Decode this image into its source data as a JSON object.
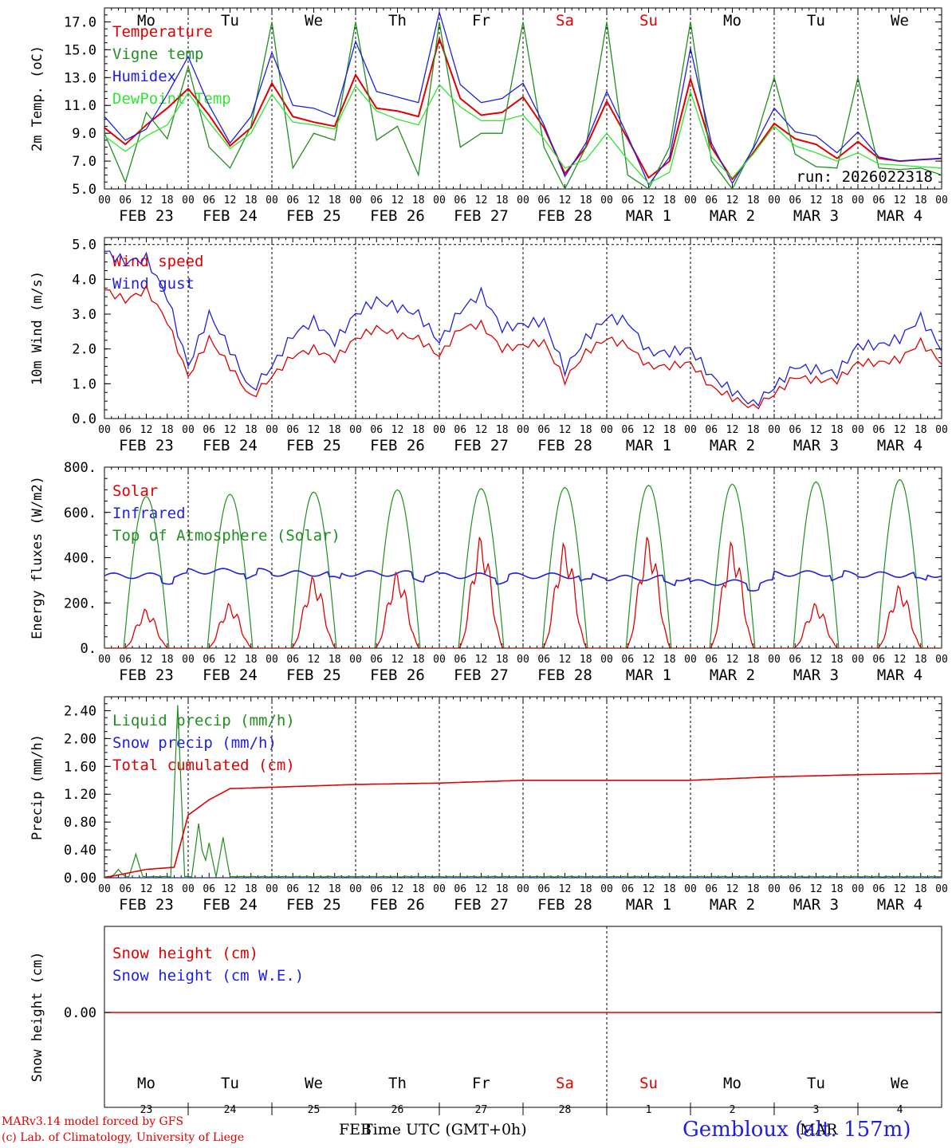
{
  "chart_data": [
    {
      "type": "line",
      "ylabel": "2m Temp. (oC)",
      "ylim": [
        5.0,
        18.0
      ],
      "yticks": [
        "5.0",
        "7.0",
        "9.0",
        "11.0",
        "13.0",
        "15.0",
        "17.0"
      ],
      "run_label": "run: 2026022318",
      "x_hours": [
        0,
        6,
        12,
        18,
        24,
        30,
        36,
        42,
        48,
        54,
        60,
        66,
        72,
        78,
        84,
        90,
        96,
        102,
        108,
        114,
        120,
        126,
        132,
        138,
        144,
        150,
        156,
        162,
        168,
        174,
        180,
        186,
        192,
        198,
        204,
        210,
        216,
        222,
        228,
        234,
        240
      ],
      "series": [
        {
          "name": "Temperature",
          "color": "#e00000",
          "values": [
            9.4,
            8.2,
            9.6,
            10.8,
            12.2,
            10.3,
            8.1,
            9.4,
            12.6,
            10.2,
            9.8,
            9.5,
            13.2,
            10.8,
            10.6,
            10.2,
            15.8,
            11.5,
            10.3,
            10.5,
            11.6,
            9.4,
            6.1,
            8.0,
            11.3,
            8.6,
            5.8,
            7.0,
            12.9,
            8.0,
            5.7,
            7.6,
            9.7,
            8.6,
            8.2,
            7.2,
            8.4,
            7.2,
            7.0,
            7.1,
            7.2
          ]
        },
        {
          "name": "Vigne temp",
          "color": "#1f8f1f",
          "values": [
            9.0,
            5.5,
            10.5,
            8.6,
            13.8,
            8.0,
            6.5,
            9.5,
            17.0,
            6.5,
            9.0,
            8.5,
            17.0,
            8.5,
            9.5,
            6.0,
            17.0,
            8.0,
            9.0,
            9.0,
            17.0,
            8.0,
            5.0,
            8.0,
            17.0,
            6.0,
            5.0,
            8.0,
            17.0,
            7.0,
            5.0,
            8.0,
            13.0,
            7.5,
            6.6,
            6.5,
            13.0,
            6.5,
            6.4,
            6.5,
            6.0
          ]
        },
        {
          "name": "Humidex",
          "color": "#1f1fe0",
          "values": [
            10.2,
            8.5,
            9.3,
            11.8,
            14.5,
            11.0,
            8.3,
            10.2,
            14.8,
            11.0,
            10.8,
            10.2,
            15.6,
            12.0,
            11.6,
            11.2,
            17.7,
            12.5,
            11.2,
            11.5,
            12.6,
            9.6,
            5.9,
            8.3,
            12.0,
            8.8,
            5.3,
            7.3,
            15.1,
            8.3,
            5.4,
            7.9,
            10.8,
            9.1,
            8.8,
            7.6,
            9.1,
            7.3,
            7.0,
            7.1,
            7.2
          ]
        },
        {
          "name": "DewPoint Temp",
          "color": "#33e633",
          "values": [
            8.8,
            7.7,
            8.8,
            9.6,
            11.9,
            9.8,
            7.9,
            9.0,
            11.8,
            9.8,
            9.6,
            9.3,
            12.4,
            10.6,
            10.0,
            9.6,
            12.5,
            10.9,
            9.9,
            9.9,
            10.3,
            8.6,
            6.5,
            7.1,
            9.0,
            7.1,
            5.4,
            6.2,
            12.0,
            7.3,
            5.8,
            7.5,
            9.5,
            8.1,
            7.6,
            7.0,
            7.6,
            6.8,
            6.7,
            6.6,
            6.5
          ]
        }
      ]
    },
    {
      "type": "line",
      "ylabel": "10m Wind (m/s)",
      "ylim": [
        0.0,
        5.2
      ],
      "yticks": [
        "0.0",
        "1.0",
        "2.0",
        "3.0",
        "4.0",
        "5.0"
      ],
      "x_hours": [
        0,
        6,
        12,
        18,
        24,
        30,
        36,
        42,
        48,
        54,
        60,
        66,
        72,
        78,
        84,
        90,
        96,
        102,
        108,
        114,
        120,
        126,
        132,
        138,
        144,
        150,
        156,
        162,
        168,
        174,
        180,
        186,
        192,
        198,
        204,
        210,
        216,
        222,
        228,
        234,
        240
      ],
      "series": [
        {
          "name": "Wind speed",
          "color": "#e00000",
          "values": [
            3.7,
            3.4,
            3.7,
            2.8,
            1.2,
            2.3,
            1.5,
            0.6,
            1.2,
            1.8,
            2.0,
            1.7,
            2.3,
            2.6,
            2.4,
            2.3,
            1.8,
            2.6,
            2.7,
            2.0,
            2.1,
            2.2,
            1.1,
            1.9,
            2.3,
            2.1,
            1.5,
            1.5,
            1.6,
            0.9,
            0.6,
            0.3,
            0.7,
            1.2,
            1.1,
            1.1,
            1.6,
            1.6,
            1.7,
            2.2,
            1.6
          ]
        },
        {
          "name": "Wind gust",
          "color": "#1f1fe0",
          "values": [
            4.8,
            4.5,
            4.6,
            3.5,
            1.5,
            3.0,
            2.0,
            0.8,
            1.5,
            2.4,
            2.8,
            2.2,
            3.0,
            3.4,
            3.2,
            3.0,
            2.2,
            3.1,
            3.6,
            2.6,
            2.7,
            2.8,
            1.4,
            2.3,
            2.9,
            2.8,
            1.9,
            1.9,
            2.0,
            1.2,
            0.8,
            0.4,
            0.9,
            1.5,
            1.4,
            1.3,
            2.1,
            2.1,
            2.3,
            2.9,
            2.0
          ]
        }
      ]
    },
    {
      "type": "line",
      "ylabel": "Energy fluxes (W/m2)",
      "ylim": [
        0,
        800
      ],
      "yticks": [
        "0.",
        "200.",
        "400.",
        "600.",
        "800."
      ],
      "solar_peaks": [
        175,
        200,
        320,
        340,
        500,
        470,
        500,
        475,
        200,
        280
      ],
      "toa_peaks": [
        670,
        680,
        690,
        700,
        705,
        710,
        720,
        725,
        735,
        745
      ],
      "infrared_level": [
        320,
        340,
        330,
        330,
        320,
        320,
        310,
        290,
        330,
        325
      ],
      "series": [
        {
          "name": "Solar",
          "color": "#e00000"
        },
        {
          "name": "Infrared",
          "color": "#1f1fe0"
        },
        {
          "name": "Top of Atmosphere (Solar)",
          "color": "#1f8f1f"
        }
      ]
    },
    {
      "type": "line",
      "ylabel": "Precip (mm/h)",
      "ylim": [
        0.0,
        2.6
      ],
      "yticks": [
        "0.00",
        "0.40",
        "0.80",
        "1.20",
        "1.60",
        "2.00",
        "2.40"
      ],
      "series": [
        {
          "name": "Liquid precip (mm/h)",
          "color": "#1f8f1f",
          "peaks_hours": [
            4,
            9,
            21,
            27,
            30,
            34
          ],
          "peaks_values": [
            0.12,
            0.34,
            2.48,
            0.78,
            0.5,
            0.58
          ]
        },
        {
          "name": "Snow precip (mm/h)",
          "color": "#1f1fe0"
        },
        {
          "name": "Total cumulated (cm)",
          "color": "#e00000",
          "x_hours": [
            0,
            12,
            20,
            24,
            30,
            36,
            48,
            72,
            96,
            120,
            144,
            168,
            192,
            216,
            240
          ],
          "values": [
            0,
            0.12,
            0.15,
            0.9,
            1.12,
            1.28,
            1.3,
            1.34,
            1.36,
            1.4,
            1.4,
            1.4,
            1.45,
            1.48,
            1.5
          ]
        }
      ]
    },
    {
      "type": "line",
      "ylabel": "Snow height (cm)",
      "yticks": [
        "0.00"
      ],
      "series": [
        {
          "name": "Snow height (cm)",
          "color": "#e00000",
          "value": 0.0
        },
        {
          "name": "Snow height (cm W.E.)",
          "color": "#1f1fe0",
          "value": 0.0
        }
      ]
    }
  ],
  "days": [
    {
      "abbr": "Mo",
      "date": "FEB 23",
      "num": "23",
      "weekend": false
    },
    {
      "abbr": "Tu",
      "date": "FEB 24",
      "num": "24",
      "weekend": false
    },
    {
      "abbr": "We",
      "date": "FEB 25",
      "num": "25",
      "weekend": false
    },
    {
      "abbr": "Th",
      "date": "FEB 26",
      "num": "26",
      "weekend": false
    },
    {
      "abbr": "Fr",
      "date": "FEB 27",
      "num": "27",
      "weekend": false
    },
    {
      "abbr": "Sa",
      "date": "FEB 28",
      "num": "28",
      "weekend": true
    },
    {
      "abbr": "Su",
      "date": "MAR  1",
      "num": "1",
      "weekend": true
    },
    {
      "abbr": "Mo",
      "date": "MAR  2",
      "num": "2",
      "weekend": false
    },
    {
      "abbr": "Tu",
      "date": "MAR  3",
      "num": "3",
      "weekend": false
    },
    {
      "abbr": "We",
      "date": "MAR  4",
      "num": "4",
      "weekend": false
    }
  ],
  "hour_ticks": [
    "00",
    "06",
    "12",
    "18"
  ],
  "hour_tick_end": "00",
  "colors": {
    "red": "#e00000",
    "blue": "#1f1fe0",
    "green": "#1f8f1f",
    "lightgreen": "#33e633"
  },
  "footer": {
    "credit_line1": "MARv3.14 model forced by GFS",
    "credit_line2": "(c) Lab. of Climatology, University of Liege",
    "station": "Gembloux (alt. 157m)",
    "time_feb": "FEB",
    "time_label": "Time UTC (GMT+0h)",
    "time_mar": "MAR"
  }
}
